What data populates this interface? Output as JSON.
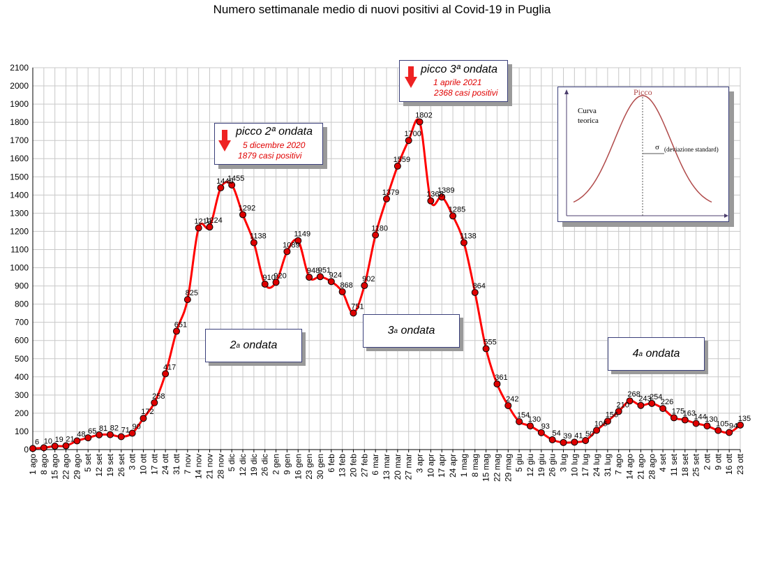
{
  "title": "Numero settimanale medio di nuovi positivi al Covid-19 in Puglia",
  "colors": {
    "line": "#ff0000",
    "marker": "#dd0000",
    "grid": "#c8c8c8",
    "curve": "#b04a4a"
  },
  "annotations": {
    "peak2": {
      "title": "picco 2ª ondata",
      "date": "5 dicembre 2020",
      "cases": "1879 casi positivi"
    },
    "peak3": {
      "title": "picco 3ª ondata",
      "date": "1 aprile 2021",
      "cases": "2368 casi positivi"
    },
    "wave2": {
      "label": "2",
      "sup": "a",
      "suffix": " ondata"
    },
    "wave3": {
      "label": "3",
      "sup": "a",
      "suffix": " ondata"
    },
    "wave4": {
      "label": "4",
      "sup": "a",
      "suffix": " ondata"
    }
  },
  "inset": {
    "peak_label": "Picco",
    "curve_label_1": "Curva",
    "curve_label_2": "teorica",
    "sigma_label": "σ",
    "sigma_text": "(deviazione standard)"
  },
  "chart_data": {
    "type": "line",
    "title": "Numero settimanale medio di nuovi positivi al Covid-19 in Puglia",
    "xlabel": "",
    "ylabel": "",
    "ylim": [
      0,
      2100
    ],
    "ytick_step": 100,
    "grid": true,
    "categories": [
      "1 ago",
      "8 ago",
      "15 ago",
      "22 ago",
      "29 ago",
      "5 set",
      "12 set",
      "19 set",
      "26 set",
      "3 ott",
      "10 ott",
      "17 ott",
      "24 ott",
      "31 ott",
      "7 nov",
      "14 nov",
      "21 nov",
      "28 nov",
      "5 dic",
      "12 dic",
      "19 dic",
      "26 dic",
      "2 gen",
      "9 gen",
      "16 gen",
      "23 gen",
      "30 gen",
      "6 feb",
      "13 feb",
      "20 feb",
      "27 feb",
      "6 mar",
      "13 mar",
      "20 mar",
      "27 mar",
      "3 apr",
      "10 apr",
      "17 apr",
      "24 apr",
      "1 mag",
      "8 mag",
      "15 mag",
      "22 mag",
      "29 mag",
      "5 giu",
      "12 giu",
      "19 giu",
      "26 giu",
      "3 lug",
      "10 lug",
      "17 lug",
      "24 lug",
      "31 lug",
      "7 ago",
      "14 ago",
      "21 ago",
      "28 ago",
      "4 set",
      "11 set",
      "18 set",
      "25 set",
      "2 ott",
      "9 ott",
      "16 ott",
      "23 ott"
    ],
    "series": [
      {
        "values": [
          6,
          10,
          19,
          21,
          48,
          65,
          81,
          82,
          71,
          90,
          172,
          258,
          417,
          651,
          825,
          1219,
          1224,
          1440,
          1455,
          1292,
          1138,
          910,
          920,
          1089,
          1149,
          948,
          951,
          924,
          868,
          751,
          902,
          1180,
          1379,
          1559,
          1700,
          1802,
          1368,
          1389,
          1285,
          1138,
          864,
          555,
          361,
          242,
          154,
          130,
          93,
          54,
          39,
          41,
          50,
          106,
          156,
          210,
          268,
          243,
          254,
          226,
          175,
          163,
          144,
          130,
          105,
          94,
          135
        ]
      }
    ],
    "value_labels": [
      "6",
      "10",
      "19",
      "21",
      "48",
      "65",
      "81",
      "82",
      "71",
      "90",
      "172",
      "258",
      "417",
      "651",
      "825",
      "1219",
      "1224",
      "1440",
      "1455",
      "1292",
      "1138",
      "910",
      "920",
      "1089",
      "1149",
      "948",
      "951",
      "924",
      "868",
      "751",
      "902",
      "1180",
      "1379",
      "1559",
      "1700",
      "1802",
      "1368",
      "1389",
      "1285",
      "1138",
      "864",
      "555",
      "361",
      "242",
      "154",
      "130",
      "93",
      "54",
      "39",
      "41",
      "50",
      "106",
      "156",
      "210",
      "268",
      "243",
      "254",
      "226",
      "175",
      "163",
      "144",
      "130",
      "105",
      "94",
      "135"
    ]
  }
}
